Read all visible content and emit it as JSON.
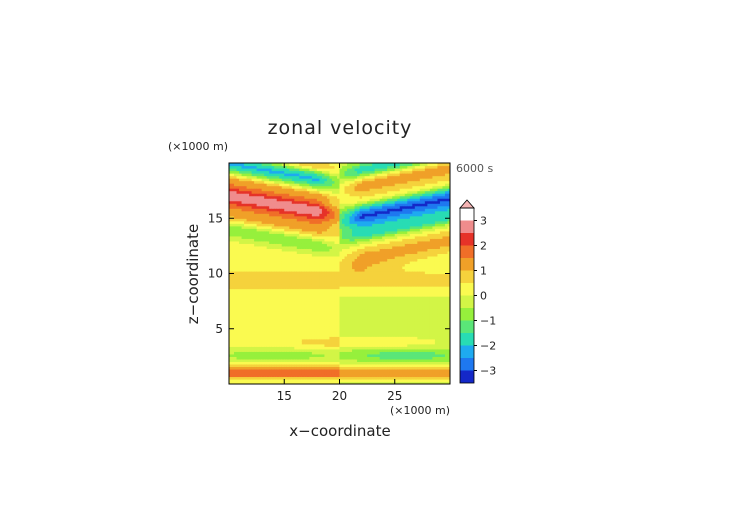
{
  "chart_data": {
    "type": "heatmap",
    "title": "zonal velocity",
    "time_label": "6000 s",
    "xlabel": "x−coordinate",
    "ylabel": "z−coordinate",
    "x_unit": "(×1000 m)",
    "y_unit": "(×1000 m)",
    "xlim": [
      10,
      30
    ],
    "ylim": [
      0,
      20
    ],
    "x_ticks": [
      "15",
      "20",
      "25"
    ],
    "x_tick_values": [
      15,
      20,
      25
    ],
    "y_ticks": [
      "5",
      "10",
      "15"
    ],
    "y_tick_values": [
      5,
      10,
      15
    ],
    "colorbar": {
      "levels": [
        -3.5,
        -3,
        -2.5,
        -2,
        -1.5,
        -1,
        -0.5,
        0,
        0.5,
        1,
        1.5,
        2,
        2.5,
        3,
        3.5
      ],
      "colors": [
        "#0a0a7a",
        "#1428c8",
        "#1e78f0",
        "#1eaaf0",
        "#28dcb4",
        "#5ae678",
        "#96f03c",
        "#d2f546",
        "#fafa50",
        "#f5d23c",
        "#f0a028",
        "#f06e28",
        "#e63228",
        "#f08c8c",
        "#f5b4b4"
      ],
      "tick_labels": [
        "3",
        "2",
        "1",
        "0",
        "−1",
        "−2",
        "−3"
      ],
      "tick_values": [
        3,
        2,
        1,
        0,
        -1,
        -2,
        -3
      ]
    },
    "field_description_values": {
      "upper_left_jets": [
        {
          "z": 15,
          "value": 2.5
        },
        {
          "z": 18.3,
          "value": -2
        },
        {
          "z": 13.5,
          "value": 0.8
        },
        {
          "z": 12,
          "value": -0.8
        }
      ],
      "upper_right_jets": [
        {
          "z": 15,
          "value": -2.5
        },
        {
          "z": 17.5,
          "value": 1.5
        },
        {
          "z": 13.5,
          "value": -1.5
        },
        {
          "z": 11,
          "value": 1.5
        }
      ],
      "near_surface": [
        {
          "z": 1,
          "value": 1.5
        },
        {
          "z": 2.7,
          "value": -1
        }
      ]
    }
  }
}
